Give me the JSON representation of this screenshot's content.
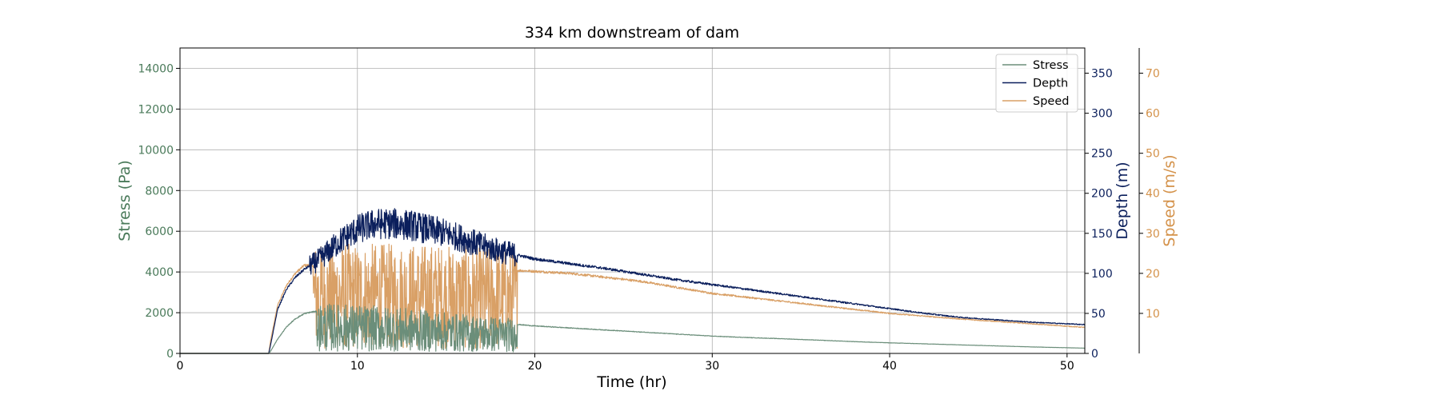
{
  "chart_data": {
    "type": "line",
    "title": "334 km downstream of dam",
    "xlabel": "Time (hr)",
    "xlim": [
      0,
      51
    ],
    "x_ticks": [
      0,
      10,
      20,
      30,
      40,
      50
    ],
    "grid": true,
    "legend_position": "top-right",
    "axes": {
      "stress": {
        "label": "Stress (Pa)",
        "color": "#4a7a5a",
        "ylim": [
          0,
          15000
        ],
        "ticks": [
          0,
          2000,
          4000,
          6000,
          8000,
          10000,
          12000,
          14000
        ]
      },
      "depth": {
        "label": "Depth (m)",
        "color": "#0b1f5c",
        "ylim": [
          0,
          381.5
        ],
        "ticks": [
          0,
          50,
          100,
          150,
          200,
          250,
          300,
          350
        ]
      },
      "speed": {
        "label": "Speed (m/s)",
        "color": "#d4924a",
        "ylim": [
          0,
          76.3
        ],
        "ticks": [
          10,
          20,
          30,
          40,
          50,
          60,
          70
        ]
      }
    },
    "series": [
      {
        "name": "Stress",
        "axis": "stress",
        "color": "#6b8e7a",
        "points": [
          [
            0,
            0
          ],
          [
            5,
            0
          ],
          [
            5.1,
            100
          ],
          [
            5.5,
            700
          ],
          [
            6,
            1300
          ],
          [
            6.5,
            1700
          ],
          [
            7,
            1950
          ],
          [
            7.5,
            2050
          ],
          [
            8,
            2050
          ],
          [
            10,
            2000
          ],
          [
            12,
            1900
          ],
          [
            14,
            1750
          ],
          [
            16,
            1600
          ],
          [
            18,
            1500
          ],
          [
            20,
            1350
          ],
          [
            22,
            1250
          ],
          [
            24,
            1150
          ],
          [
            26,
            1050
          ],
          [
            28,
            950
          ],
          [
            30,
            850
          ],
          [
            32,
            780
          ],
          [
            34,
            720
          ],
          [
            36,
            650
          ],
          [
            38,
            580
          ],
          [
            40,
            520
          ],
          [
            42,
            470
          ],
          [
            44,
            420
          ],
          [
            46,
            370
          ],
          [
            48,
            320
          ],
          [
            50,
            280
          ],
          [
            51,
            260
          ]
        ],
        "noise_band": [
          7.7,
          19
        ]
      },
      {
        "name": "Depth",
        "axis": "depth",
        "color": "#0b1f5c",
        "points": [
          [
            0,
            0
          ],
          [
            5,
            0
          ],
          [
            5.1,
            10
          ],
          [
            5.5,
            55
          ],
          [
            6,
            80
          ],
          [
            6.5,
            95
          ],
          [
            7,
            105
          ],
          [
            7.5,
            112
          ],
          [
            8,
            120
          ],
          [
            9,
            140
          ],
          [
            10,
            155
          ],
          [
            11,
            162
          ],
          [
            12,
            162
          ],
          [
            13,
            160
          ],
          [
            14,
            155
          ],
          [
            15,
            150
          ],
          [
            16,
            143
          ],
          [
            17,
            135
          ],
          [
            18,
            128
          ],
          [
            19,
            123
          ],
          [
            20,
            118
          ],
          [
            22,
            112
          ],
          [
            24,
            106
          ],
          [
            26,
            99
          ],
          [
            28,
            92
          ],
          [
            30,
            86
          ],
          [
            32,
            80
          ],
          [
            34,
            74
          ],
          [
            36,
            68
          ],
          [
            38,
            62
          ],
          [
            40,
            56
          ],
          [
            42,
            50
          ],
          [
            44,
            45
          ],
          [
            46,
            42
          ],
          [
            48,
            39
          ],
          [
            50,
            37
          ],
          [
            51,
            36
          ]
        ],
        "noise_band": [
          7.3,
          19
        ]
      },
      {
        "name": "Speed",
        "axis": "speed",
        "color": "#d9a066",
        "points": [
          [
            0,
            0
          ],
          [
            5,
            0
          ],
          [
            5.1,
            3
          ],
          [
            5.5,
            12
          ],
          [
            6,
            17
          ],
          [
            6.5,
            20
          ],
          [
            7,
            22
          ],
          [
            8,
            22
          ],
          [
            10,
            22
          ],
          [
            12,
            22
          ],
          [
            14,
            22
          ],
          [
            16,
            21.5
          ],
          [
            18,
            21
          ],
          [
            20,
            20.5
          ],
          [
            22,
            20
          ],
          [
            24,
            19
          ],
          [
            26,
            18
          ],
          [
            28,
            16.5
          ],
          [
            30,
            15
          ],
          [
            32,
            14
          ],
          [
            34,
            13
          ],
          [
            36,
            12
          ],
          [
            38,
            11
          ],
          [
            40,
            10
          ],
          [
            42,
            9.3
          ],
          [
            44,
            8.6
          ],
          [
            46,
            8
          ],
          [
            48,
            7.4
          ],
          [
            50,
            6.8
          ],
          [
            51,
            6.5
          ]
        ],
        "noise_band": [
          7.5,
          19
        ]
      }
    ]
  }
}
